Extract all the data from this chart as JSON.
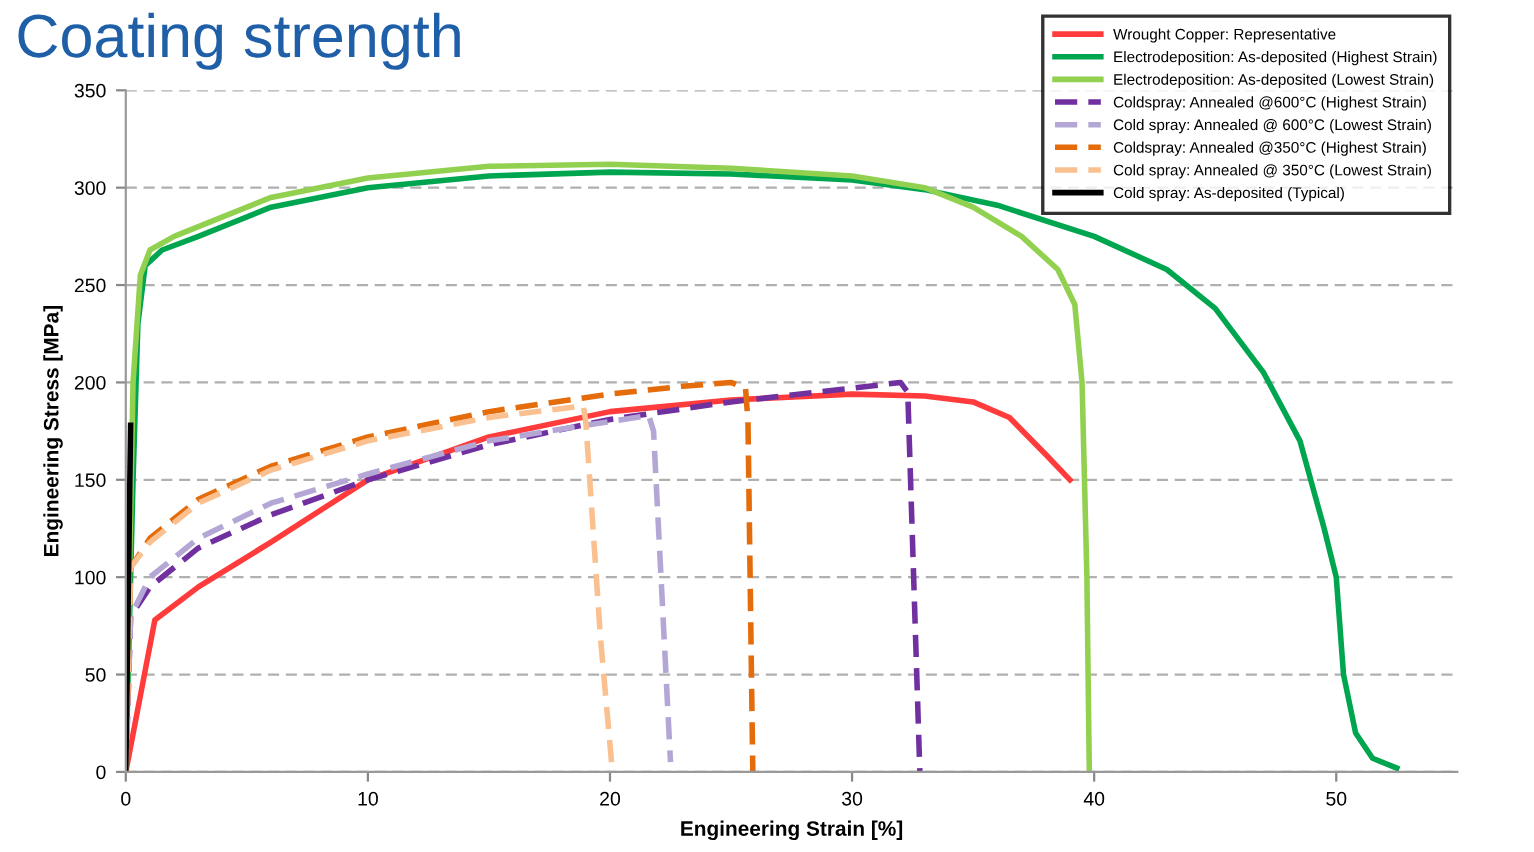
{
  "chart_data": {
    "type": "line",
    "title": "Coating strength",
    "xlabel": "Engineering Strain [%]",
    "ylabel": "Engineering Stress [MPa]",
    "xlim": [
      0,
      55
    ],
    "xticks": [
      0,
      10,
      20,
      30,
      40,
      50
    ],
    "ylim": [
      0,
      350
    ],
    "yticks": [
      0,
      50,
      100,
      150,
      200,
      250,
      300,
      350
    ],
    "grid": "y",
    "legend": "top right",
    "marker": "none",
    "series": [
      {
        "name": "Wrought Copper: Representative",
        "color": "#ff3b3b",
        "line_style": "solid",
        "x": [
          0,
          1.2,
          3,
          6,
          10,
          15,
          20,
          25,
          30,
          33,
          35,
          36.5,
          38,
          39
        ],
        "values": [
          0,
          78,
          95,
          118,
          150,
          172,
          185,
          191,
          194,
          193,
          190,
          182,
          163,
          150
        ]
      },
      {
        "name": "Electrodeposition: As-deposited (Highest Strain)",
        "color": "#00a550",
        "line_style": "solid",
        "x": [
          0,
          0.3,
          0.5,
          0.8,
          1.5,
          3,
          6,
          10,
          15,
          20,
          25,
          30,
          33,
          36,
          40,
          43,
          45,
          47,
          48.5,
          49.5,
          50,
          50.3,
          50.8,
          51.5,
          52.5
        ],
        "values": [
          0,
          150,
          230,
          260,
          268,
          275,
          290,
          300,
          306,
          308,
          307,
          304,
          299,
          291,
          275,
          258,
          238,
          205,
          170,
          125,
          100,
          50,
          20,
          7,
          2
        ]
      },
      {
        "name": "Electrodeposition: As-deposited (Lowest Strain)",
        "color": "#92d050",
        "line_style": "solid",
        "x": [
          0,
          0.3,
          0.6,
          1,
          2,
          4,
          6,
          10,
          15,
          20,
          25,
          30,
          33,
          35,
          37,
          38.5,
          39.2,
          39.5,
          39.7,
          39.8
        ],
        "values": [
          0,
          200,
          255,
          268,
          275,
          285,
          295,
          305,
          311,
          312,
          310,
          306,
          300,
          290,
          275,
          258,
          240,
          200,
          100,
          0
        ]
      },
      {
        "name": "Coldspray: Annealed @600°C (Highest Strain)",
        "color": "#7030a0",
        "line_style": "dashed",
        "x": [
          0,
          0.2,
          1,
          3,
          6,
          10,
          15,
          20,
          25,
          30,
          32,
          32.3,
          32.8
        ],
        "values": [
          0,
          80,
          95,
          115,
          132,
          150,
          168,
          181,
          190,
          197,
          200,
          195,
          0
        ]
      },
      {
        "name": "Cold spray: Annealed @ 600°C (Lowest Strain)",
        "color": "#b4a7d6",
        "line_style": "dashed",
        "x": [
          0,
          0.2,
          1,
          3,
          6,
          10,
          15,
          19,
          21.6,
          21.8,
          22.5
        ],
        "values": [
          0,
          80,
          100,
          120,
          138,
          153,
          170,
          178,
          183,
          175,
          5
        ]
      },
      {
        "name": "Coldspray: Annealed @350°C (Highest Strain)",
        "color": "#e46c0a",
        "line_style": "dashed",
        "x": [
          0,
          0.2,
          1,
          3,
          6,
          10,
          15,
          20,
          23,
          25,
          25.6,
          25.7,
          25.9
        ],
        "values": [
          0,
          105,
          120,
          140,
          157,
          172,
          185,
          194,
          198,
          200,
          197,
          180,
          0
        ]
      },
      {
        "name": "Cold spray: Annealed @ 350°C (Lowest Strain)",
        "color": "#fac090",
        "line_style": "dashed",
        "x": [
          0,
          0.2,
          1,
          3,
          6,
          10,
          15,
          18.9,
          19,
          19.6,
          20.1
        ],
        "values": [
          0,
          105,
          118,
          138,
          155,
          170,
          182,
          188,
          180,
          70,
          0
        ]
      },
      {
        "name": "Cold spray: As-deposited (Typical)",
        "color": "#000000",
        "line_style": "solid",
        "x": [
          0,
          0.2
        ],
        "values": [
          0,
          178
        ]
      }
    ]
  }
}
